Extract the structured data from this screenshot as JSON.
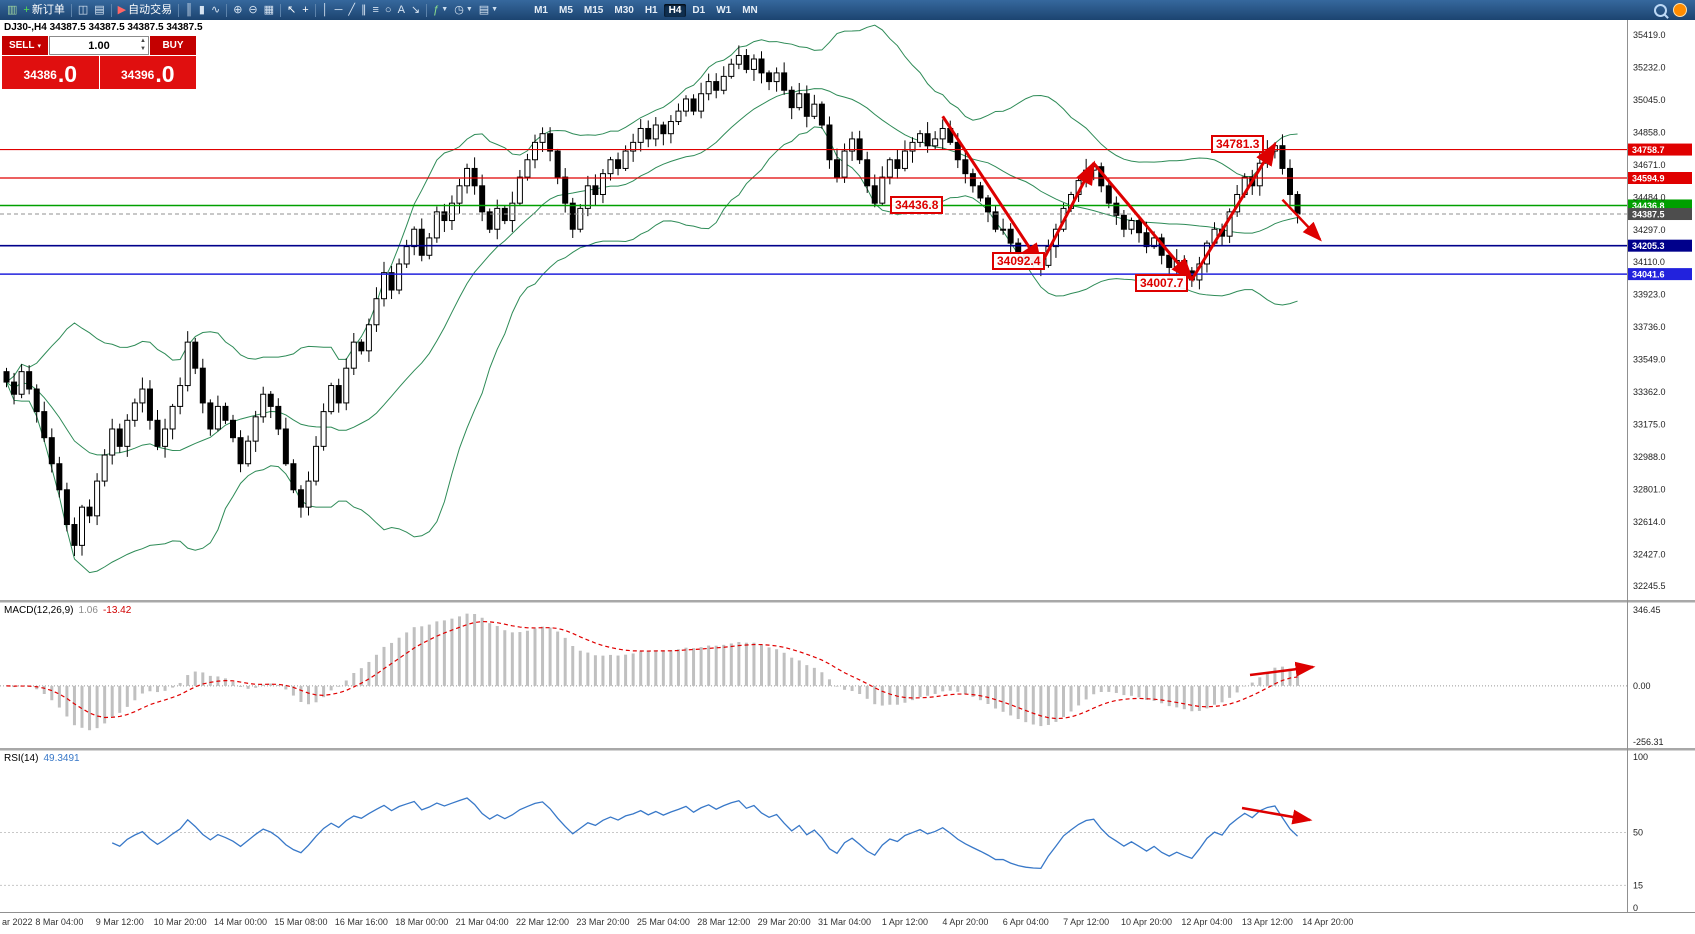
{
  "toolbar": {
    "items": [
      {
        "name": "new-chart-icon",
        "glyph": "▥",
        "color": "#9fd49f"
      },
      {
        "name": "new-order-button",
        "glyph": "+",
        "color": "#55dd55",
        "label": "新订单"
      },
      {
        "sep": true
      },
      {
        "name": "charts-layout-icon",
        "glyph": "◫",
        "color": "#d7e4f2"
      },
      {
        "name": "profiles-icon",
        "glyph": "▤",
        "color": "#d7e4f2"
      },
      {
        "sep": true
      },
      {
        "name": "auto-trading-button",
        "glyph": "▶",
        "color": "#ff6666",
        "label": "自动交易"
      },
      {
        "sep": true
      },
      {
        "name": "bar-chart-icon",
        "glyph": "║",
        "color": "#d7e4f2"
      },
      {
        "name": "candlestick-chart-icon",
        "glyph": "▮",
        "color": "#d7e4f2"
      },
      {
        "name": "line-chart-icon",
        "glyph": "∿",
        "color": "#d7e4f2"
      },
      {
        "sep": true
      },
      {
        "name": "zoom-in-icon",
        "glyph": "⊕",
        "color": "#d7e4f2"
      },
      {
        "name": "zoom-out-icon",
        "glyph": "⊖",
        "color": "#d7e4f2"
      },
      {
        "name": "tile-windows-icon",
        "glyph": "▦",
        "color": "#d7e4f2"
      },
      {
        "sep": true
      },
      {
        "name": "cursor-icon",
        "glyph": "↖",
        "color": "#ffffff"
      },
      {
        "name": "crosshair-icon",
        "glyph": "+",
        "color": "#ffffff"
      },
      {
        "sep": true
      },
      {
        "name": "vertical-line-icon",
        "glyph": "│",
        "color": "#d7e4f2"
      },
      {
        "name": "horizontal-line-icon",
        "glyph": "─",
        "color": "#d7e4f2"
      },
      {
        "name": "trendline-icon",
        "glyph": "╱",
        "color": "#d7e4f2"
      },
      {
        "name": "channel-icon",
        "glyph": "∥",
        "color": "#d7e4f2"
      },
      {
        "name": "fibonacci-icon",
        "glyph": "≡",
        "color": "#d7e4f2"
      },
      {
        "name": "shapes-icon",
        "glyph": "○",
        "color": "#d7e4f2"
      },
      {
        "name": "text-icon",
        "glyph": "A",
        "color": "#d7e4f2"
      },
      {
        "name": "arrow-tool-icon",
        "glyph": "↘",
        "color": "#d7e4f2"
      },
      {
        "sep": true
      },
      {
        "name": "indicators-icon",
        "glyph": "ƒ",
        "color": "#8de08d",
        "dropdown": true
      },
      {
        "name": "timeframes-icon",
        "glyph": "◷",
        "color": "#d7e4f2",
        "dropdown": true
      },
      {
        "name": "templates-icon",
        "glyph": "▤",
        "color": "#d7e4f2",
        "dropdown": true
      }
    ],
    "timeframes": [
      "M1",
      "M5",
      "M15",
      "M30",
      "H1",
      "H4",
      "D1",
      "W1",
      "MN"
    ],
    "active_timeframe": "H4"
  },
  "symbol_info": "DJ30-,H4  34387.5 34387.5 34387.5 34387.5",
  "trade_panel": {
    "sell_label": "SELL",
    "buy_label": "BUY",
    "volume": "1.00",
    "sell_price_main": "34386",
    "sell_price_pip": ".0",
    "buy_price_main": "34396",
    "buy_price_pip": ".0"
  },
  "indicators_labels": {
    "macd_name": "MACD(12,26,9)",
    "macd_main_value": "1.06",
    "macd_signal_value": "-13.42",
    "rsi_name": "RSI(14)",
    "rsi_value": "49.3491"
  },
  "price_lines": [
    {
      "price": 34758.7,
      "label": "34758.7",
      "color": "#e00000",
      "width": 1.2,
      "dash": "",
      "tag": "#e00000"
    },
    {
      "price": 34594.9,
      "label": "34594.9",
      "color": "#e00000",
      "width": 1.2,
      "dash": "",
      "tag": "#e00000"
    },
    {
      "price": 34436.8,
      "label": "34436.8",
      "color": "#00a000",
      "width": 1.5,
      "dash": "",
      "tag": "#00a000"
    },
    {
      "price": 34387.5,
      "label": "34387.5",
      "color": "#909090",
      "width": 1,
      "dash": "4,3",
      "tag": "#4d4d4d"
    },
    {
      "price": 34205.3,
      "label": "34205.3",
      "color": "#00008b",
      "width": 1.7,
      "dash": "",
      "tag": "#00008b"
    },
    {
      "price": 34041.6,
      "label": "34041.6",
      "color": "#2222dd",
      "width": 1.4,
      "dash": "",
      "tag": "#2222dd"
    }
  ],
  "annotations": {
    "color": "#dd0000",
    "zigzag": [
      [
        124,
        34950
      ],
      [
        137,
        34095
      ],
      [
        144,
        34680
      ],
      [
        157,
        34010
      ],
      [
        168,
        34790
      ]
    ],
    "tail_arrow": [
      [
        169,
        34470
      ],
      [
        174,
        34240
      ]
    ],
    "macd_arrow": [
      [
        1250,
        655
      ],
      [
        1313,
        647
      ]
    ],
    "rsi_arrow": [
      [
        1242,
        788
      ],
      [
        1310,
        800
      ]
    ],
    "boxes": [
      {
        "text": "34781.3",
        "i": 159.5,
        "price": 34790
      },
      {
        "text": "34436.8",
        "i": 117,
        "price": 34437
      },
      {
        "text": "34092.4",
        "i": 130.5,
        "price": 34115
      },
      {
        "text": "34007.7",
        "i": 149.5,
        "price": 33990
      }
    ]
  },
  "chart_data": {
    "type": "candlestick",
    "symbol": "DJ30-",
    "period": "H4",
    "price_axis": {
      "max": 35470,
      "min": 32200,
      "ticks": [
        "35419.0",
        "35232.0",
        "35045.0",
        "34858.0",
        "34671.0",
        "34484.0",
        "34297.0",
        "34110.0",
        "33923.0",
        "33736.0",
        "33549.0",
        "33362.0",
        "33175.0",
        "32988.0",
        "32801.0",
        "32614.0",
        "32427.0",
        "32245.5"
      ]
    },
    "closes": [
      33420,
      33350,
      33480,
      33380,
      33250,
      33100,
      32950,
      32800,
      32600,
      32480,
      32700,
      32650,
      32850,
      33000,
      33150,
      33050,
      33200,
      33300,
      33380,
      33200,
      33050,
      33150,
      33280,
      33400,
      33650,
      33500,
      33300,
      33150,
      33280,
      33200,
      33100,
      32950,
      33080,
      33220,
      33350,
      33280,
      33150,
      32950,
      32800,
      32700,
      32850,
      33050,
      33250,
      33400,
      33300,
      33500,
      33650,
      33600,
      33750,
      33900,
      34050,
      33950,
      34100,
      34200,
      34300,
      34150,
      34250,
      34400,
      34350,
      34450,
      34550,
      34650,
      34550,
      34400,
      34300,
      34420,
      34350,
      34450,
      34600,
      34700,
      34800,
      34850,
      34750,
      34600,
      34450,
      34300,
      34420,
      34550,
      34500,
      34620,
      34700,
      34650,
      34750,
      34800,
      34880,
      34820,
      34900,
      34850,
      34920,
      34980,
      35050,
      34980,
      35080,
      35150,
      35100,
      35180,
      35250,
      35300,
      35220,
      35280,
      35200,
      35150,
      35200,
      35100,
      35000,
      35080,
      34950,
      35020,
      34900,
      34700,
      34600,
      34750,
      34820,
      34700,
      34550,
      34450,
      34600,
      34700,
      34650,
      34750,
      34800,
      34850,
      34780,
      34820,
      34880,
      34800,
      34700,
      34620,
      34550,
      34480,
      34400,
      34300,
      34300,
      34220,
      34160,
      34120,
      34100,
      34092,
      34200,
      34300,
      34420,
      34500,
      34580,
      34640,
      34660,
      34550,
      34450,
      34380,
      34300,
      34350,
      34280,
      34200,
      34250,
      34150,
      34080,
      34120,
      34060,
      34008,
      34100,
      34220,
      34300,
      34260,
      34400,
      34500,
      34600,
      34550,
      34680,
      34750,
      34781,
      34650,
      34500,
      34388
    ],
    "indicators": {
      "bollinger": {
        "period": 20,
        "deviation": 2,
        "color": "#2e8b57"
      },
      "macd": {
        "fast": 12,
        "slow": 26,
        "signal": 9,
        "ticks": [
          "346.45",
          "0.00",
          "-256.31"
        ]
      },
      "rsi": {
        "period": 14,
        "ticks": [
          "100",
          "50",
          "15",
          "0"
        ],
        "levels": [
          50,
          15
        ]
      }
    },
    "time_axis": {
      "labels": [
        {
          "i": 0,
          "label": "ar 2022"
        },
        {
          "i": 7,
          "label": "8 Mar 04:00"
        },
        {
          "i": 15,
          "label": "9 Mar 12:00"
        },
        {
          "i": 23,
          "label": "10 Mar 20:00"
        },
        {
          "i": 31,
          "label": "14 Mar 00:00"
        },
        {
          "i": 39,
          "label": "15 Mar 08:00"
        },
        {
          "i": 47,
          "label": "16 Mar 16:00"
        },
        {
          "i": 55,
          "label": "18 Mar 00:00"
        },
        {
          "i": 63,
          "label": "21 Mar 04:00"
        },
        {
          "i": 71,
          "label": "22 Mar 12:00"
        },
        {
          "i": 79,
          "label": "23 Mar 20:00"
        },
        {
          "i": 87,
          "label": "25 Mar 04:00"
        },
        {
          "i": 95,
          "label": "28 Mar 12:00"
        },
        {
          "i": 103,
          "label": "29 Mar 20:00"
        },
        {
          "i": 111,
          "label": "31 Mar 04:00"
        },
        {
          "i": 119,
          "label": "1 Apr 12:00"
        },
        {
          "i": 127,
          "label": "4 Apr 20:00"
        },
        {
          "i": 135,
          "label": "6 Apr 04:00"
        },
        {
          "i": 143,
          "label": "7 Apr 12:00"
        },
        {
          "i": 151,
          "label": "10 Apr 20:00"
        },
        {
          "i": 159,
          "label": "12 Apr 04:00"
        },
        {
          "i": 167,
          "label": "13 Apr 12:00"
        },
        {
          "i": 175,
          "label": "14 Apr 20:00"
        }
      ]
    }
  }
}
